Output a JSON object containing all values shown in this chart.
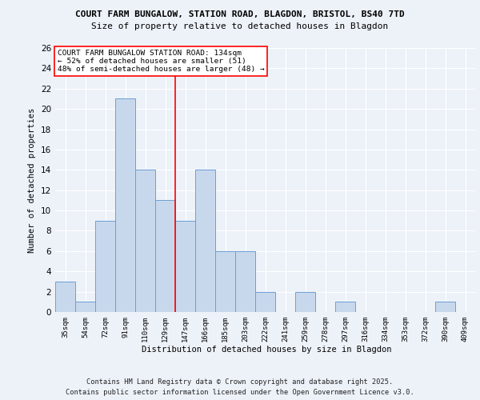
{
  "title1": "COURT FARM BUNGALOW, STATION ROAD, BLAGDON, BRISTOL, BS40 7TD",
  "title2": "Size of property relative to detached houses in Blagdon",
  "xlabel": "Distribution of detached houses by size in Blagdon",
  "ylabel": "Number of detached properties",
  "bar_color": "#c8d8ec",
  "bar_edge_color": "#6b9fd4",
  "categories": [
    "35sqm",
    "54sqm",
    "72sqm",
    "91sqm",
    "110sqm",
    "129sqm",
    "147sqm",
    "166sqm",
    "185sqm",
    "203sqm",
    "222sqm",
    "241sqm",
    "259sqm",
    "278sqm",
    "297sqm",
    "316sqm",
    "334sqm",
    "353sqm",
    "372sqm",
    "390sqm",
    "409sqm"
  ],
  "values": [
    3,
    1,
    9,
    21,
    14,
    11,
    9,
    14,
    6,
    6,
    2,
    0,
    2,
    0,
    1,
    0,
    0,
    0,
    0,
    1,
    0
  ],
  "red_line_x": 5.5,
  "ylim": [
    0,
    26
  ],
  "yticks": [
    0,
    2,
    4,
    6,
    8,
    10,
    12,
    14,
    16,
    18,
    20,
    22,
    24,
    26
  ],
  "annotation_title": "COURT FARM BUNGALOW STATION ROAD: 134sqm",
  "annotation_line1": "← 52% of detached houses are smaller (51)",
  "annotation_line2": "48% of semi-detached houses are larger (48) →",
  "footnote1": "Contains HM Land Registry data © Crown copyright and database right 2025.",
  "footnote2": "Contains public sector information licensed under the Open Government Licence v3.0.",
  "background_color": "#edf2f9",
  "plot_bg_color": "#edf2f9"
}
